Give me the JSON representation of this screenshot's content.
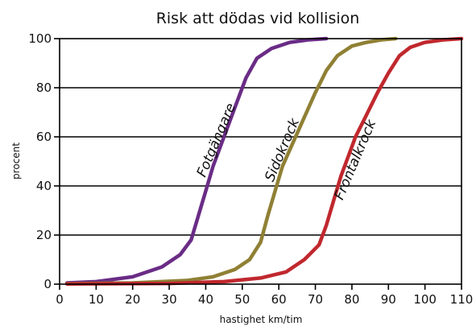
{
  "chart_data": {
    "type": "line",
    "title": "Risk att dödas vid kollision",
    "xlabel": "hastighet km/tim",
    "ylabel": "procent",
    "xlim": [
      0,
      110
    ],
    "ylim": [
      0,
      100
    ],
    "xticks": [
      0,
      10,
      20,
      30,
      40,
      50,
      60,
      70,
      80,
      90,
      100,
      110
    ],
    "yticks": [
      0,
      20,
      40,
      60,
      80,
      100
    ],
    "grid": "horizontal",
    "legend": "inline labels",
    "series": [
      {
        "name": "Fotgängare",
        "color": "#6a2c86",
        "x": [
          2,
          10,
          20,
          28,
          33,
          36,
          38,
          40,
          42,
          45,
          48,
          51,
          54,
          58,
          63,
          68,
          73
        ],
        "y": [
          0.5,
          1,
          3,
          7,
          12,
          18,
          28,
          38,
          48,
          60,
          72,
          84,
          92,
          96,
          98.5,
          99.5,
          100
        ]
      },
      {
        "name": "Sidokrock",
        "color": "#8f8035",
        "x": [
          2,
          20,
          35,
          42,
          48,
          52,
          55,
          57,
          59,
          61,
          64,
          67,
          70,
          73,
          76,
          80,
          84,
          88,
          92
        ],
        "y": [
          0.2,
          0.5,
          1.5,
          3,
          6,
          10,
          17,
          28,
          38,
          48,
          58,
          68,
          78,
          87,
          93,
          97,
          98.5,
          99.5,
          100
        ]
      },
      {
        "name": "Frontalkrock",
        "color": "#c0282e",
        "x": [
          2,
          30,
          45,
          55,
          62,
          67,
          71,
          73,
          75,
          77,
          79,
          81,
          84,
          87,
          90,
          93,
          96,
          100,
          105,
          110
        ],
        "y": [
          0.1,
          0.3,
          1,
          2.5,
          5,
          10,
          16,
          24,
          34,
          44,
          52,
          60,
          69,
          78,
          86,
          93,
          96.5,
          98.5,
          99.5,
          100
        ]
      }
    ]
  }
}
